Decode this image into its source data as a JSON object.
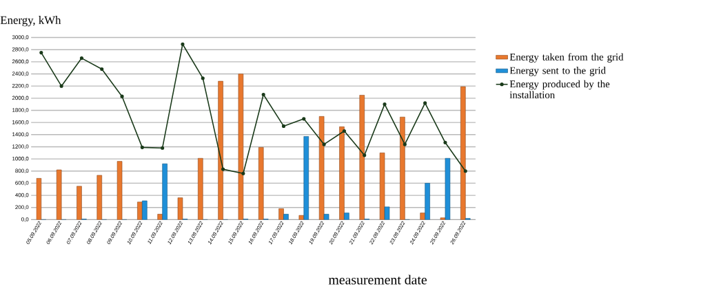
{
  "chart_data": {
    "type": "bar",
    "ylabel": "Energy, kWh",
    "xlabel": "measurement date",
    "categories": [
      "05.09.2022",
      "06.09.2022",
      "07.09.2022",
      "08.09.2022",
      "09.09.2022",
      "10.09.2022",
      "11.09.2022",
      "12.09.2022",
      "13.09.2022",
      "14.09.2022",
      "15.09.2022",
      "16.09.2022",
      "17.09.2022",
      "18.09.2022",
      "19.09.2022",
      "20.09.2022",
      "21.09.2022",
      "22.09.2022",
      "23.09.2022",
      "24.09.2022",
      "25.09.2022",
      "26.09.2022"
    ],
    "series": [
      {
        "name": "Energy taken from the grid",
        "color": "#e8782e",
        "values": [
          680,
          820,
          550,
          730,
          960,
          290,
          90,
          360,
          1010,
          2280,
          2400,
          1190,
          180,
          70,
          1700,
          1530,
          2050,
          1100,
          1690,
          110,
          30,
          2190
        ]
      },
      {
        "name": "Energy sent to the grid",
        "color": "#1f8fd8",
        "values": [
          0,
          0,
          10,
          0,
          0,
          310,
          920,
          10,
          0,
          0,
          10,
          10,
          90,
          1370,
          90,
          110,
          10,
          210,
          0,
          600,
          1010,
          20
        ]
      },
      {
        "name": "Energy produced by the installation",
        "type": "line",
        "color": "#1a3a1a",
        "marker": "circle",
        "values": [
          2750,
          2200,
          2660,
          2480,
          2030,
          1190,
          1180,
          2890,
          2330,
          830,
          760,
          2060,
          1540,
          1660,
          1240,
          1460,
          1060,
          1900,
          1240,
          1920,
          1270,
          800
        ]
      }
    ],
    "ylim": [
      0,
      3000
    ],
    "yticks": [
      {
        "value": 0,
        "label": "0,0"
      },
      {
        "value": 200,
        "label": "200,0"
      },
      {
        "value": 400,
        "label": "400,0"
      },
      {
        "value": 600,
        "label": "600,0"
      },
      {
        "value": 800,
        "label": "800,0"
      },
      {
        "value": 1000,
        "label": "1000,0"
      },
      {
        "value": 1200,
        "label": "1200,0"
      },
      {
        "value": 1400,
        "label": "1400,0"
      },
      {
        "value": 1600,
        "label": "1600,0"
      },
      {
        "value": 1800,
        "label": "1800,0"
      },
      {
        "value": 2000,
        "label": "2000,0"
      },
      {
        "value": 2200,
        "label": "2200,0"
      },
      {
        "value": 2400,
        "label": "2400,0"
      },
      {
        "value": 2600,
        "label": "2600,0"
      },
      {
        "value": 2800,
        "label": "2800,0"
      },
      {
        "value": 3000,
        "label": "3000,0"
      }
    ],
    "grid": "y",
    "legend": "right"
  }
}
